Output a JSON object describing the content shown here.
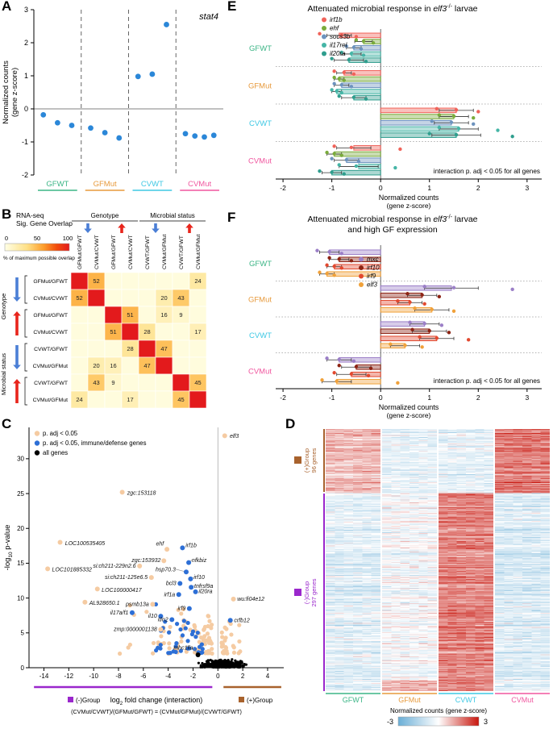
{
  "colors": {
    "groups": {
      "GFWT": "#3cb586",
      "GFMut": "#e79a3c",
      "CVWT": "#3fc8e4",
      "CVMut": "#f0569f"
    },
    "volcano": {
      "tan": "#f5cba2",
      "blue": "#2d6fd6",
      "black": "#000000"
    },
    "neg_group": "#9a27cc",
    "pos_group": "#a8622d",
    "point_blue": "#2b87d8",
    "arrow_down": "#4b7fd6",
    "arrow_up": "#e8251c"
  },
  "chart_data": [
    {
      "panel": "A",
      "type": "scatter",
      "gene": "stat4",
      "ylabel": [
        "Normalized counts",
        "(gene z-score)"
      ],
      "ylim": [
        -2,
        3
      ],
      "yticks": [
        -2,
        -1,
        0,
        1,
        2,
        3
      ],
      "groups": [
        "GFWT",
        "GFMut",
        "CVWT",
        "CVMut"
      ],
      "points": {
        "GFWT": [
          -0.18,
          -0.42,
          -0.5
        ],
        "GFMut": [
          -0.58,
          -0.72,
          -0.88
        ],
        "CVWT": [
          0.98,
          1.05,
          2.55
        ],
        "CVMut": [
          -0.75,
          -0.82,
          -0.85,
          -0.8
        ]
      }
    },
    {
      "panel": "B",
      "type": "heatmap",
      "legend_title": [
        "RNA-seq",
        "Sig. Gene Overlap"
      ],
      "scale_ticks": [
        "0",
        "50",
        "100"
      ],
      "scale_caption": "% of maximum possible overlap",
      "col_headers": [
        "Genotype",
        "Microbial status"
      ],
      "row_headers": [
        "Genotype",
        "Microbial status"
      ],
      "labels": [
        "GFMut/GFWT",
        "CVMut/CVWT",
        "GFMut/GFWT",
        "CVMut/CVWT",
        "CVWT/GFWT",
        "CVMut/GFMut",
        "CVWT/GFWT",
        "CVMut/GFMut"
      ],
      "matrix": [
        [
          100,
          52,
          null,
          null,
          null,
          null,
          null,
          24
        ],
        [
          52,
          100,
          null,
          null,
          null,
          20,
          43,
          null
        ],
        [
          null,
          null,
          100,
          51,
          null,
          16,
          9,
          null
        ],
        [
          null,
          null,
          51,
          100,
          28,
          null,
          null,
          17
        ],
        [
          null,
          null,
          null,
          28,
          100,
          47,
          null,
          null
        ],
        [
          null,
          20,
          16,
          null,
          47,
          100,
          null,
          null
        ],
        [
          null,
          43,
          9,
          null,
          null,
          null,
          100,
          45
        ],
        [
          24,
          null,
          null,
          17,
          null,
          null,
          45,
          100
        ]
      ]
    },
    {
      "panel": "C",
      "type": "scatter",
      "legend": [
        {
          "label": "p. adj < 0.05",
          "color": "tan"
        },
        {
          "label": "p. adj < 0.05, immune/defense genes",
          "color": "blue"
        },
        {
          "label": "all genes",
          "color": "black"
        }
      ],
      "xlim": [
        -15.2,
        5.3
      ],
      "ylim": [
        0,
        34.5
      ],
      "xticks": [
        -14,
        -12,
        -10,
        -8,
        -6,
        -4,
        -2,
        0,
        2,
        4
      ],
      "yticks": [
        0,
        5,
        10,
        15,
        20,
        25,
        30
      ],
      "ylabel_parts": [
        {
          "t": "-log"
        },
        {
          "t": "10",
          "sub": true
        },
        {
          "t": " p-value"
        }
      ],
      "xlabel_parts": [
        {
          "t": "log"
        },
        {
          "t": "2",
          "sub": true
        },
        {
          "t": " fold change (interaction)"
        }
      ],
      "formula": "(CVMut/CVWT)/(GFMut/GFWT) = (CVMut/GFMut)/(CVWT/GFWT)",
      "neg_group_label": "(-)Group",
      "pos_group_label": "(+)Group",
      "genes": [
        {
          "name": "elf3",
          "x": 0.55,
          "y": 33.3,
          "c": "tan",
          "lx": 0.95,
          "ly": 33.3,
          "a": "start"
        },
        {
          "name": "zgc:153118",
          "x": -7.7,
          "y": 25.2,
          "c": "tan",
          "lx": -7.3,
          "ly": 25.1,
          "a": "start"
        },
        {
          "name": "LOC100535405",
          "x": -12.7,
          "y": 18.0,
          "c": "tan",
          "lx": -12.3,
          "ly": 17.9,
          "a": "start"
        },
        {
          "name": "ehf",
          "x": -4.1,
          "y": 17.0,
          "c": "tan",
          "lx": -4.35,
          "ly": 17.85,
          "a": "end"
        },
        {
          "name": "irf1b",
          "x": -2.85,
          "y": 17.2,
          "c": "blue",
          "lx": -2.6,
          "ly": 17.6,
          "a": "start"
        },
        {
          "name": "zgc:153932",
          "x": -4.35,
          "y": 15.35,
          "c": "tan",
          "lx": -4.6,
          "ly": 15.45,
          "a": "end"
        },
        {
          "name": "nfkbiz",
          "x": -2.35,
          "y": 15.1,
          "c": "blue",
          "lx": -2.1,
          "ly": 15.45,
          "a": "start",
          "leader": true
        },
        {
          "name": "LOC101885332",
          "x": -13.7,
          "y": 14.2,
          "c": "tan",
          "lx": -13.35,
          "ly": 14.1,
          "a": "start"
        },
        {
          "name": "si:ch211-229n2.6",
          "x": -6.3,
          "y": 14.6,
          "c": "tan",
          "lx": -6.6,
          "ly": 14.65,
          "a": "end"
        },
        {
          "name": "hsp70.3",
          "x": -2.55,
          "y": 13.75,
          "c": "blue",
          "lx": -3.4,
          "ly": 14.15,
          "a": "end",
          "leader": true
        },
        {
          "name": "si:ch211-125e6.5",
          "x": -5.35,
          "y": 12.95,
          "c": "tan",
          "lx": -5.65,
          "ly": 13.0,
          "a": "end"
        },
        {
          "name": "irf10",
          "x": -2.2,
          "y": 12.75,
          "c": "blue",
          "lx": -1.95,
          "ly": 13.0,
          "a": "start",
          "leader": true
        },
        {
          "name": "bcl3",
          "x": -3.05,
          "y": 12.1,
          "c": "blue",
          "lx": -3.35,
          "ly": 12.15,
          "a": "end"
        },
        {
          "name": "LOC100000417",
          "x": -9.7,
          "y": 11.3,
          "c": "tan",
          "lx": -9.35,
          "ly": 11.2,
          "a": "start"
        },
        {
          "name": "tnfrsf9a",
          "x": -2.15,
          "y": 11.55,
          "c": "blue",
          "lx": -1.9,
          "ly": 11.75,
          "a": "start",
          "leader": true
        },
        {
          "name": "il20ra",
          "x": -1.8,
          "y": 10.9,
          "c": "blue",
          "lx": -1.55,
          "ly": 11.0,
          "a": "start"
        },
        {
          "name": "irf1a",
          "x": -3.15,
          "y": 10.5,
          "c": "blue",
          "lx": -3.45,
          "ly": 10.55,
          "a": "end"
        },
        {
          "name": "AL928650.1",
          "x": -10.7,
          "y": 9.4,
          "c": "tan",
          "lx": -10.35,
          "ly": 9.3,
          "a": "start"
        },
        {
          "name": "psmb13a",
          "x": -5.25,
          "y": 9.1,
          "c": "tan",
          "lx": -5.55,
          "ly": 9.15,
          "a": "end"
        },
        {
          "name": "wu:fi04e12",
          "x": 1.25,
          "y": 9.85,
          "c": "tan",
          "lx": 1.55,
          "ly": 9.9,
          "a": "start"
        },
        {
          "name": "irf9",
          "x": -2.3,
          "y": 8.5,
          "c": "blue",
          "lx": -2.6,
          "ly": 8.55,
          "a": "end"
        },
        {
          "name": "il17a/f1",
          "x": -6.9,
          "y": 7.9,
          "c": "blue",
          "lx": -7.2,
          "ly": 7.95,
          "a": "end"
        },
        {
          "name": "il10",
          "x": -4.6,
          "y": 7.4,
          "c": "blue",
          "lx": -4.9,
          "ly": 7.45,
          "a": "end"
        },
        {
          "name": "itln2",
          "x": -3.7,
          "y": 6.9,
          "c": "blue",
          "lx": -4.0,
          "ly": 6.95,
          "a": "end"
        },
        {
          "name": "crfb12",
          "x": 1.0,
          "y": 6.8,
          "c": "blue",
          "lx": 1.3,
          "ly": 6.85,
          "a": "start"
        },
        {
          "name": "zmp:0000001138",
          "x": -4.6,
          "y": 5.5,
          "c": "tan",
          "lx": -4.9,
          "ly": 5.55,
          "a": "end"
        },
        {
          "name": "mhc1lla",
          "x": -1.6,
          "y": 1.85,
          "c": "black",
          "lx": -2.0,
          "ly": 2.9,
          "a": "end",
          "leader": true
        }
      ]
    },
    {
      "panel": "D",
      "type": "heatmap",
      "columns": [
        "GFWT",
        "GFMut",
        "CVWT",
        "CVMut"
      ],
      "row_groups": [
        {
          "label": "(+)Group",
          "genes_label": "96 genes",
          "n": 96
        },
        {
          "label": "(-)Group",
          "genes_label": "297 genes",
          "n": 297
        }
      ],
      "colorbar_label": "Normalized counts (gene z-score)",
      "colorbar_min": "-3",
      "colorbar_max": "3"
    },
    {
      "panel": "E",
      "type": "bar",
      "title_lines": [
        [
          {
            "t": "Attenuated microbial response in "
          },
          {
            "t": "elf3",
            "italic": true
          },
          {
            "t": "-/-",
            "sup": true
          },
          {
            "t": " larvae"
          }
        ]
      ],
      "genes": [
        {
          "name": "irf1b",
          "color": "#f0635a"
        },
        {
          "name": "ehf",
          "color": "#7aab3c"
        },
        {
          "name": "socs3b",
          "color": "#6d93be"
        },
        {
          "name": "il17rel",
          "color": "#45b5a6"
        },
        {
          "name": "il20ra",
          "color": "#2f9e8e"
        }
      ],
      "groups": [
        "GFWT",
        "GFMut",
        "CVWT",
        "CVMut"
      ],
      "xlim": [
        -2.15,
        3.3
      ],
      "xticks": [
        -2,
        -1,
        0,
        1,
        2,
        3
      ],
      "xlabel": [
        "Normalized counts",
        "(gene z-score)"
      ],
      "note": "interaction p. adj < 0.05 for all genes",
      "values": {
        "GFWT": {
          "mean": [
            -0.85,
            -0.35,
            -0.55,
            -0.6,
            -0.65
          ],
          "err": [
            0.25,
            0.18,
            0.15,
            0.2,
            0.3
          ],
          "dots": [
            [
              -1.25,
              -0.8,
              -0.5
            ],
            [
              -0.5,
              -0.35,
              -0.15
            ],
            [
              -0.7,
              -0.55,
              -0.4
            ],
            [
              -0.8,
              -0.6,
              -0.35
            ],
            [
              -1.0,
              -0.65,
              -0.3
            ]
          ]
        },
        "GFMut": {
          "mean": [
            -0.75,
            -0.85,
            -0.8,
            -0.9,
            -0.55
          ],
          "err": [
            0.15,
            0.1,
            0.15,
            0.1,
            0.25
          ],
          "dots": [
            [
              -0.95,
              -0.75,
              -0.55
            ],
            [
              -0.95,
              -0.85,
              -0.75
            ],
            [
              -0.95,
              -0.8,
              -0.6
            ],
            [
              -1.0,
              -0.9,
              -0.8
            ],
            [
              -0.85,
              -0.55,
              -0.3
            ]
          ]
        },
        "CVWT": {
          "mean": [
            1.55,
            1.5,
            1.45,
            1.6,
            1.55
          ],
          "err": [
            0.35,
            0.3,
            0.35,
            0.4,
            0.5
          ],
          "dots": [
            [
              1.15,
              1.55,
              2.0
            ],
            [
              1.2,
              1.5,
              1.9
            ],
            [
              1.05,
              1.45,
              1.9
            ],
            [
              1.2,
              1.6,
              2.4
            ],
            [
              1.0,
              1.55,
              2.7
            ]
          ]
        },
        "CVMut": {
          "mean": [
            -0.55,
            -0.95,
            -0.7,
            -0.45,
            -1.0
          ],
          "err": [
            0.35,
            0.15,
            0.25,
            0.4,
            0.2
          ],
          "dots": [
            [
              -0.95,
              -0.6,
              0.4
            ],
            [
              -1.1,
              -0.95,
              -0.8
            ],
            [
              -1.0,
              -0.7,
              -0.45
            ],
            [
              -0.85,
              -0.5,
              0.3
            ],
            [
              -1.25,
              -1.0,
              -0.75
            ]
          ]
        }
      }
    },
    {
      "panel": "F",
      "type": "bar",
      "title_lines": [
        [
          {
            "t": "Attenuated microbial response in "
          },
          {
            "t": "elf3",
            "italic": true
          },
          {
            "t": "-/-",
            "sup": true
          },
          {
            "t": " larvae"
          }
        ],
        [
          {
            "t": "and high GF expression"
          }
        ]
      ],
      "genes": [
        {
          "name": "mxc",
          "color": "#9b7fc7"
        },
        {
          "name": "irf10",
          "color": "#8d2414"
        },
        {
          "name": "irf9",
          "color": "#e2492f"
        },
        {
          "name": "elf3",
          "color": "#f0a13a"
        }
      ],
      "groups": [
        "GFWT",
        "GFMut",
        "CVWT",
        "CVMut"
      ],
      "xlim": [
        -2.15,
        3.3
      ],
      "xticks": [
        -2,
        -1,
        0,
        1,
        2,
        3
      ],
      "xlabel": [
        "Normalized counts",
        "(gene z-score)"
      ],
      "note": "interaction p. adj < 0.05 for all genes",
      "values": {
        "GFWT": {
          "mean": [
            -1.05,
            -0.85,
            -0.95,
            -1.1
          ],
          "err": [
            0.2,
            0.2,
            0.15,
            0.15
          ],
          "dots": [
            [
              -1.3,
              -1.05,
              -0.8
            ],
            [
              -1.05,
              -0.85,
              -0.6
            ],
            [
              -1.1,
              -0.95,
              -0.8
            ],
            [
              -1.25,
              -1.1,
              -0.95
            ]
          ]
        },
        "GFMut": {
          "mean": [
            1.45,
            0.85,
            0.6,
            1.05
          ],
          "err": [
            0.55,
            0.3,
            0.25,
            0.35
          ],
          "dots": [
            [
              0.9,
              1.5,
              2.7
            ],
            [
              0.55,
              0.85,
              1.2
            ],
            [
              0.35,
              0.6,
              0.9
            ],
            [
              0.7,
              1.05,
              1.5
            ]
          ]
        },
        "CVWT": {
          "mean": [
            0.9,
            1.0,
            1.15,
            0.5
          ],
          "err": [
            0.3,
            0.35,
            0.35,
            0.3
          ],
          "dots": [
            [
              0.6,
              0.9,
              1.25
            ],
            [
              0.65,
              1.0,
              1.4
            ],
            [
              0.8,
              1.15,
              1.8
            ],
            [
              0.2,
              0.5,
              0.85
            ]
          ]
        },
        "CVMut": {
          "mean": [
            -0.85,
            -0.5,
            -0.6,
            -0.9
          ],
          "err": [
            0.25,
            0.3,
            0.3,
            0.3
          ],
          "dots": [
            [
              -1.1,
              -0.85,
              -0.55
            ],
            [
              -0.85,
              -0.5,
              -0.2
            ],
            [
              -0.95,
              -0.6,
              -0.25
            ],
            [
              -1.2,
              -0.9,
              0.35
            ]
          ]
        }
      }
    }
  ]
}
